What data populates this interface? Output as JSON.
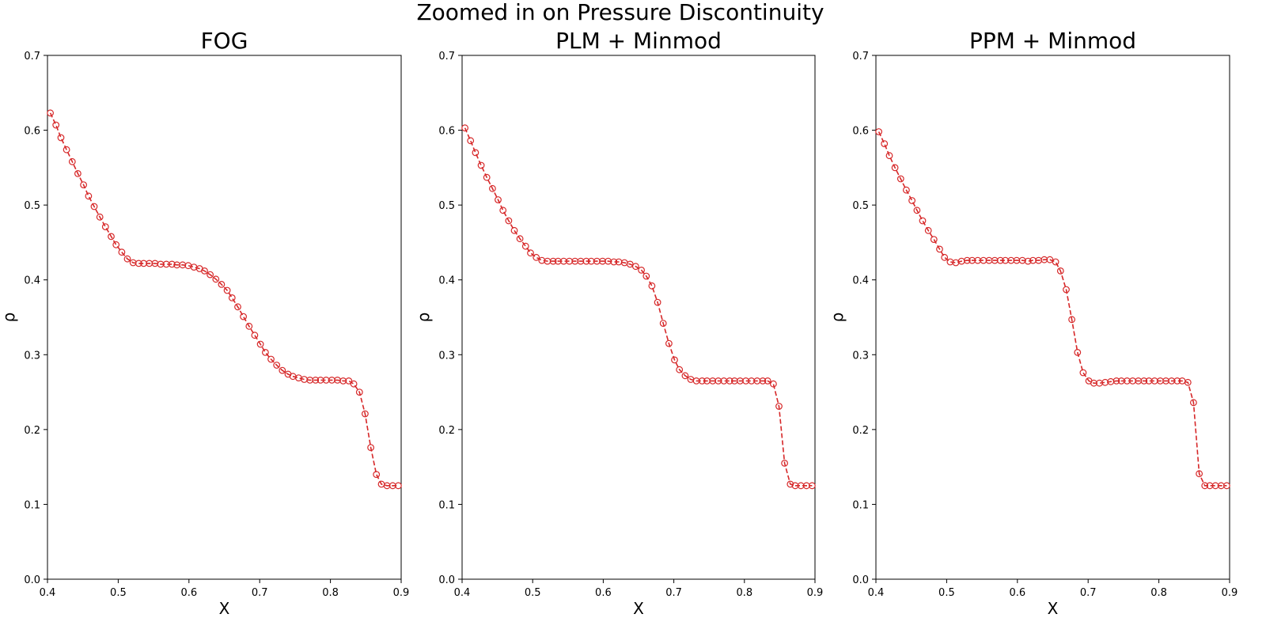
{
  "figure": {
    "suptitle": "Zoomed in on Pressure Discontinuity",
    "series_color": "#d62728"
  },
  "chart_data": [
    {
      "type": "line",
      "title": "FOG",
      "xlabel": "X",
      "ylabel": "ρ",
      "xlim": [
        0.4,
        0.9
      ],
      "ylim": [
        0.0,
        0.7
      ],
      "xticks": [
        0.4,
        0.5,
        0.6,
        0.7,
        0.8,
        0.9
      ],
      "xtick_labels": [
        "0.4",
        "0.5",
        "0.6",
        "0.7",
        "0.8",
        "0.9"
      ],
      "yticks": [
        0.0,
        0.1,
        0.2,
        0.3,
        0.4,
        0.5,
        0.6,
        0.7
      ],
      "ytick_labels": [
        "0.0",
        "0.1",
        "0.2",
        "0.3",
        "0.4",
        "0.5",
        "0.6",
        "0.7"
      ],
      "grid": false,
      "marker": "open-circle",
      "linestyle": "dashed",
      "x": [
        0.404,
        0.412,
        0.419,
        0.427,
        0.435,
        0.443,
        0.451,
        0.458,
        0.466,
        0.474,
        0.482,
        0.49,
        0.497,
        0.505,
        0.513,
        0.521,
        0.529,
        0.536,
        0.544,
        0.552,
        0.56,
        0.568,
        0.576,
        0.583,
        0.591,
        0.599,
        0.607,
        0.615,
        0.622,
        0.63,
        0.638,
        0.646,
        0.654,
        0.661,
        0.669,
        0.677,
        0.685,
        0.693,
        0.701,
        0.708,
        0.716,
        0.724,
        0.732,
        0.74,
        0.747,
        0.755,
        0.763,
        0.771,
        0.779,
        0.786,
        0.794,
        0.802,
        0.81,
        0.818,
        0.826,
        0.833,
        0.841,
        0.849,
        0.857,
        0.865,
        0.872,
        0.88,
        0.888,
        0.896
      ],
      "y": [
        0.623,
        0.607,
        0.59,
        0.574,
        0.558,
        0.542,
        0.527,
        0.512,
        0.498,
        0.484,
        0.471,
        0.458,
        0.447,
        0.437,
        0.428,
        0.423,
        0.422,
        0.422,
        0.422,
        0.422,
        0.421,
        0.421,
        0.421,
        0.42,
        0.42,
        0.419,
        0.417,
        0.415,
        0.412,
        0.407,
        0.401,
        0.394,
        0.386,
        0.376,
        0.364,
        0.351,
        0.338,
        0.326,
        0.314,
        0.303,
        0.294,
        0.286,
        0.279,
        0.274,
        0.271,
        0.269,
        0.267,
        0.266,
        0.266,
        0.266,
        0.266,
        0.266,
        0.266,
        0.265,
        0.265,
        0.261,
        0.25,
        0.221,
        0.176,
        0.14,
        0.127,
        0.125,
        0.125,
        0.125
      ]
    },
    {
      "type": "line",
      "title": "PLM + Minmod",
      "xlabel": "X",
      "ylabel": "ρ",
      "xlim": [
        0.4,
        0.9
      ],
      "ylim": [
        0.0,
        0.7
      ],
      "xticks": [
        0.4,
        0.5,
        0.6,
        0.7,
        0.8,
        0.9
      ],
      "xtick_labels": [
        "0.4",
        "0.5",
        "0.6",
        "0.7",
        "0.8",
        "0.9"
      ],
      "yticks": [
        0.0,
        0.1,
        0.2,
        0.3,
        0.4,
        0.5,
        0.6,
        0.7
      ],
      "ytick_labels": [
        "0.0",
        "0.1",
        "0.2",
        "0.3",
        "0.4",
        "0.5",
        "0.6",
        "0.7"
      ],
      "grid": false,
      "marker": "open-circle",
      "linestyle": "dashed",
      "x": [
        0.404,
        0.412,
        0.419,
        0.427,
        0.435,
        0.443,
        0.451,
        0.458,
        0.466,
        0.474,
        0.482,
        0.49,
        0.497,
        0.505,
        0.513,
        0.521,
        0.529,
        0.536,
        0.544,
        0.552,
        0.56,
        0.568,
        0.576,
        0.583,
        0.591,
        0.599,
        0.607,
        0.615,
        0.622,
        0.63,
        0.638,
        0.646,
        0.654,
        0.661,
        0.669,
        0.677,
        0.685,
        0.693,
        0.701,
        0.708,
        0.716,
        0.724,
        0.732,
        0.74,
        0.747,
        0.755,
        0.763,
        0.771,
        0.779,
        0.786,
        0.794,
        0.802,
        0.81,
        0.818,
        0.826,
        0.833,
        0.841,
        0.849,
        0.857,
        0.865,
        0.872,
        0.88,
        0.888,
        0.896
      ],
      "y": [
        0.603,
        0.586,
        0.57,
        0.553,
        0.537,
        0.522,
        0.507,
        0.493,
        0.479,
        0.466,
        0.455,
        0.445,
        0.436,
        0.43,
        0.426,
        0.425,
        0.425,
        0.425,
        0.425,
        0.425,
        0.425,
        0.425,
        0.425,
        0.425,
        0.425,
        0.425,
        0.425,
        0.424,
        0.424,
        0.423,
        0.421,
        0.418,
        0.413,
        0.405,
        0.392,
        0.37,
        0.342,
        0.315,
        0.293,
        0.28,
        0.272,
        0.267,
        0.265,
        0.265,
        0.265,
        0.265,
        0.265,
        0.265,
        0.265,
        0.265,
        0.265,
        0.265,
        0.265,
        0.265,
        0.265,
        0.265,
        0.261,
        0.231,
        0.155,
        0.127,
        0.125,
        0.125,
        0.125,
        0.125
      ]
    },
    {
      "type": "line",
      "title": "PPM + Minmod",
      "xlabel": "X",
      "ylabel": "ρ",
      "xlim": [
        0.4,
        0.9
      ],
      "ylim": [
        0.0,
        0.7
      ],
      "xticks": [
        0.4,
        0.5,
        0.6,
        0.7,
        0.8,
        0.9
      ],
      "xtick_labels": [
        "0.4",
        "0.5",
        "0.6",
        "0.7",
        "0.8",
        "0.9"
      ],
      "yticks": [
        0.0,
        0.1,
        0.2,
        0.3,
        0.4,
        0.5,
        0.6,
        0.7
      ],
      "ytick_labels": [
        "0.0",
        "0.1",
        "0.2",
        "0.3",
        "0.4",
        "0.5",
        "0.6",
        "0.7"
      ],
      "grid": false,
      "marker": "open-circle",
      "linestyle": "dashed",
      "x": [
        0.404,
        0.412,
        0.419,
        0.427,
        0.435,
        0.443,
        0.451,
        0.458,
        0.466,
        0.474,
        0.482,
        0.49,
        0.497,
        0.505,
        0.513,
        0.521,
        0.529,
        0.536,
        0.544,
        0.552,
        0.56,
        0.568,
        0.576,
        0.583,
        0.591,
        0.599,
        0.607,
        0.615,
        0.622,
        0.63,
        0.638,
        0.646,
        0.654,
        0.661,
        0.669,
        0.677,
        0.685,
        0.693,
        0.701,
        0.708,
        0.716,
        0.724,
        0.732,
        0.74,
        0.747,
        0.755,
        0.763,
        0.771,
        0.779,
        0.786,
        0.794,
        0.802,
        0.81,
        0.818,
        0.826,
        0.833,
        0.841,
        0.849,
        0.857,
        0.865,
        0.872,
        0.88,
        0.888,
        0.896
      ],
      "y": [
        0.598,
        0.582,
        0.566,
        0.55,
        0.535,
        0.52,
        0.506,
        0.493,
        0.479,
        0.466,
        0.454,
        0.441,
        0.43,
        0.424,
        0.423,
        0.425,
        0.426,
        0.426,
        0.426,
        0.426,
        0.426,
        0.426,
        0.426,
        0.426,
        0.426,
        0.426,
        0.426,
        0.425,
        0.426,
        0.426,
        0.427,
        0.427,
        0.424,
        0.412,
        0.387,
        0.347,
        0.303,
        0.276,
        0.265,
        0.262,
        0.262,
        0.263,
        0.264,
        0.265,
        0.265,
        0.265,
        0.265,
        0.265,
        0.265,
        0.265,
        0.265,
        0.265,
        0.265,
        0.265,
        0.265,
        0.265,
        0.263,
        0.236,
        0.141,
        0.125,
        0.125,
        0.125,
        0.125,
        0.125
      ]
    }
  ]
}
